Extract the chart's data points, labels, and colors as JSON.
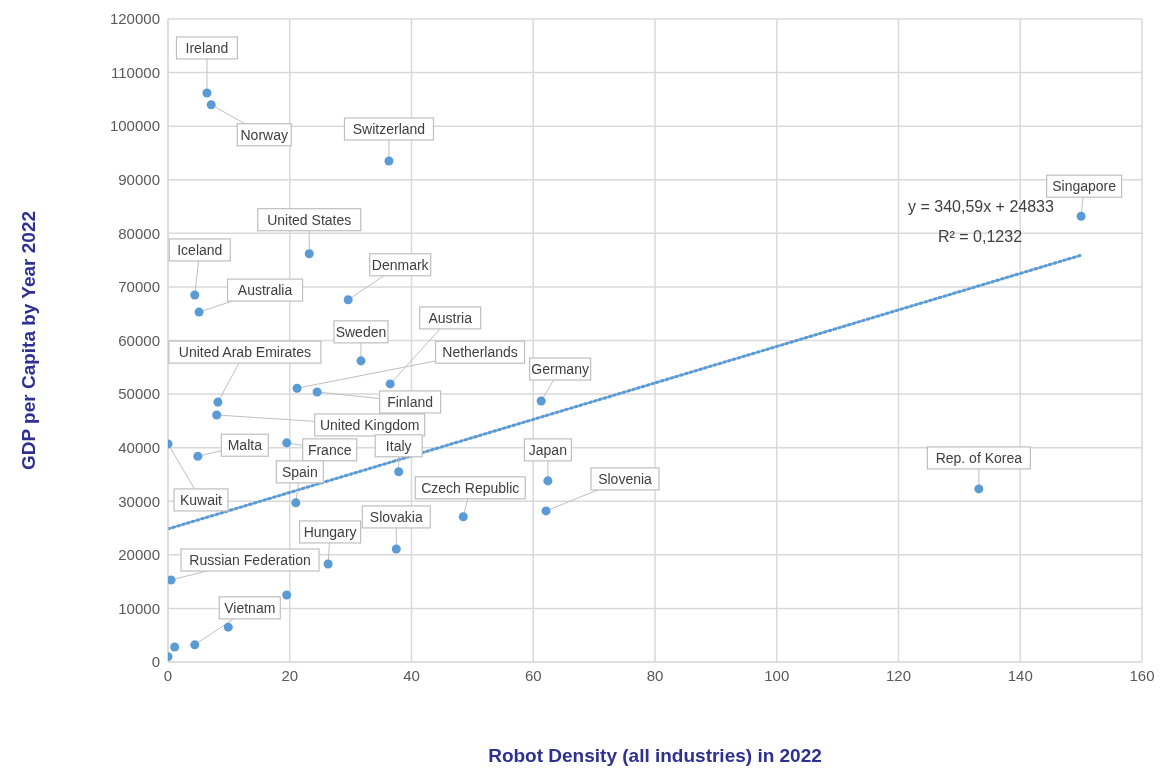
{
  "chart_data": {
    "type": "scatter",
    "xlabel": "Robot Density (all industries) in 2022",
    "ylabel": "GDP per Capita by Year 2022",
    "xlim": [
      0,
      160
    ],
    "xticks": [
      0,
      20,
      40,
      60,
      80,
      100,
      120,
      140,
      160
    ],
    "ylim": [
      0,
      120000
    ],
    "yticks": [
      0,
      10000,
      20000,
      30000,
      40000,
      50000,
      60000,
      70000,
      80000,
      90000,
      100000,
      110000,
      120000
    ],
    "grid": true,
    "marker": "circle",
    "series": [
      {
        "type": "scatter",
        "color": "#5b9bd5",
        "x": [
          6.4,
          7.1,
          36.3,
          23.2,
          4.4,
          5.1,
          29.6,
          31.7,
          36.5,
          21.2,
          24.5,
          8.2,
          8.0,
          61.3,
          0,
          4.9,
          19.5,
          37.9,
          21.0,
          62.4,
          62.1,
          48.5,
          37.5,
          26.3,
          0.5,
          19.5,
          9.9,
          4.4,
          0,
          1.1,
          150,
          133.2
        ],
        "values": [
          106200,
          104000,
          93500,
          76200,
          68500,
          65300,
          67600,
          56200,
          51900,
          51100,
          50400,
          48500,
          46100,
          48700,
          40700,
          38400,
          40900,
          35500,
          29700,
          33800,
          28200,
          27100,
          21100,
          18300,
          15300,
          12500,
          6500,
          3200,
          1000,
          2800,
          83200,
          32300
        ]
      },
      {
        "type": "line",
        "color": "#5b9bd5",
        "line_style": "dotted",
        "marker": "none",
        "x": [
          0,
          150
        ],
        "values": [
          24833,
          75922
        ]
      }
    ],
    "annotations": [
      {
        "text": "Ireland",
        "x": 6.4,
        "y": 106200
      },
      {
        "text": "Norway",
        "x": 7.1,
        "y": 104000
      },
      {
        "text": "Switzerland",
        "x": 36.3,
        "y": 93500
      },
      {
        "text": "United States",
        "x": 23.2,
        "y": 76200
      },
      {
        "text": "Iceland",
        "x": 4.4,
        "y": 68500
      },
      {
        "text": "Australia",
        "x": 5.1,
        "y": 65300
      },
      {
        "text": "Denmark",
        "x": 29.6,
        "y": 67600
      },
      {
        "text": "Sweden",
        "x": 31.7,
        "y": 56200
      },
      {
        "text": "Austria",
        "x": 36.5,
        "y": 51900
      },
      {
        "text": "Netherlands",
        "x": 21.2,
        "y": 51100
      },
      {
        "text": "Finland",
        "x": 24.5,
        "y": 50400
      },
      {
        "text": "United Arab Emirates",
        "x": 8.2,
        "y": 48500
      },
      {
        "text": "United Kingdom",
        "x": 8.0,
        "y": 46100
      },
      {
        "text": "Germany",
        "x": 61.3,
        "y": 48700
      },
      {
        "text": "Kuwait",
        "x": 0,
        "y": 40700
      },
      {
        "text": "Malta",
        "x": 4.9,
        "y": 38400
      },
      {
        "text": "France",
        "x": 19.5,
        "y": 40900
      },
      {
        "text": "Italy",
        "x": 37.9,
        "y": 35500
      },
      {
        "text": "Spain",
        "x": 21.0,
        "y": 29700
      },
      {
        "text": "Japan",
        "x": 62.4,
        "y": 33800
      },
      {
        "text": "Slovenia",
        "x": 62.1,
        "y": 28200
      },
      {
        "text": "Czech Republic",
        "x": 48.5,
        "y": 27100
      },
      {
        "text": "Slovakia",
        "x": 37.5,
        "y": 21100
      },
      {
        "text": "Hungary",
        "x": 26.3,
        "y": 18300
      },
      {
        "text": "Russian Federation",
        "x": 0.5,
        "y": 15300
      },
      {
        "text": "Vietnam",
        "x": 4.4,
        "y": 3200
      },
      {
        "text": "Singapore",
        "x": 150,
        "y": 83200
      },
      {
        "text": "Rep. of Korea",
        "x": 133.2,
        "y": 32300
      },
      "y = 340,59x + 24833",
      "R² = 0,1232"
    ]
  }
}
